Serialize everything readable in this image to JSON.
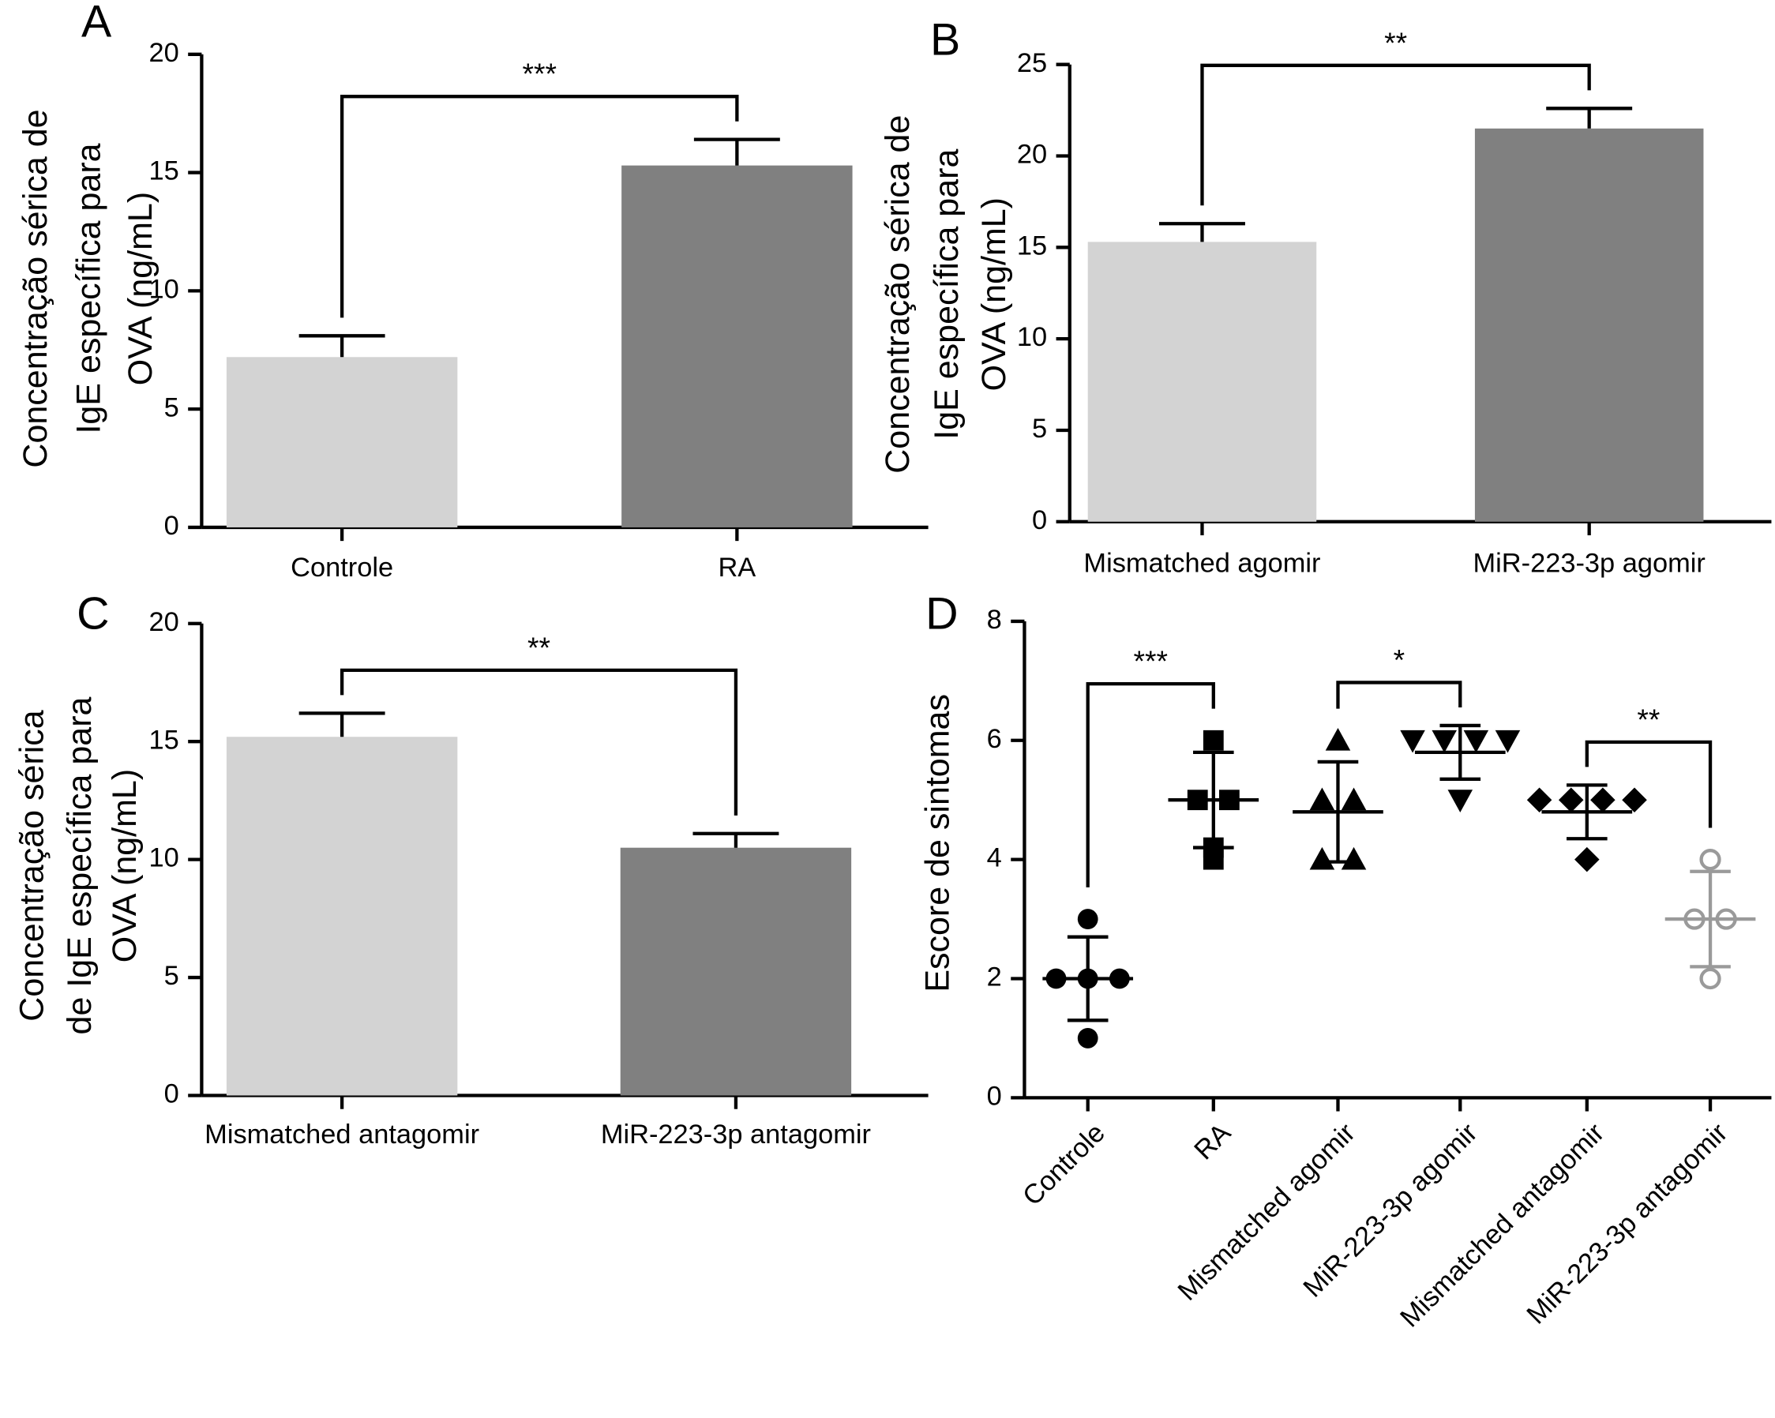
{
  "chart_data": [
    {
      "type": "bar",
      "panel_label": "A",
      "ylabel": [
        "Concentração sérica de",
        "IgE específica para",
        "OVA  (ng/mL)"
      ],
      "categories": [
        "Controle",
        "RA"
      ],
      "values": [
        7.2,
        15.3
      ],
      "errors": [
        0.9,
        1.1
      ],
      "colors": [
        "#d3d3d3",
        "#808080"
      ],
      "ylim": [
        0,
        20
      ],
      "yticks": [
        0,
        5,
        10,
        15,
        20
      ],
      "comparisons": [
        {
          "label": "***",
          "between": [
            "Controle",
            "RA"
          ]
        }
      ]
    },
    {
      "type": "bar",
      "panel_label": "B",
      "ylabel": [
        "Concentração sérica de",
        "IgE específica para",
        "OVA  (ng/mL)"
      ],
      "categories": [
        "Mismatched agomir",
        "MiR-223-3p agomir"
      ],
      "values": [
        15.3,
        21.5
      ],
      "errors": [
        1.0,
        1.1
      ],
      "colors": [
        "#d3d3d3",
        "#808080"
      ],
      "ylim": [
        0,
        25
      ],
      "yticks": [
        0,
        5,
        10,
        15,
        20,
        25
      ],
      "comparisons": [
        {
          "label": "**",
          "between": [
            "Mismatched agomir",
            "MiR-223-3p agomir"
          ]
        }
      ]
    },
    {
      "type": "bar",
      "panel_label": "C",
      "ylabel": [
        "Concentração sérica",
        "de IgE específica para",
        "OVA (ng/mL)"
      ],
      "categories": [
        "Mismatched antagomir",
        "MiR-223-3p antagomir"
      ],
      "values": [
        15.2,
        10.5
      ],
      "errors": [
        1.0,
        0.6
      ],
      "colors": [
        "#d3d3d3",
        "#808080"
      ],
      "ylim": [
        0,
        20
      ],
      "yticks": [
        0,
        5,
        10,
        15,
        20
      ],
      "comparisons": [
        {
          "label": "**",
          "between": [
            "Mismatched antagomir",
            "MiR-223-3p antagomir"
          ]
        }
      ]
    },
    {
      "type": "scatter",
      "panel_label": "D",
      "ylabel": [
        "Escore de sintomas"
      ],
      "categories": [
        "Controle",
        "RA",
        "Mismatched agomir",
        "MiR-223-3p agomir",
        "Mismatched antagomir",
        "MiR-223-3p antagomir"
      ],
      "points": [
        [
          1,
          2,
          2,
          2,
          3
        ],
        [
          4,
          4.2,
          5,
          5,
          6
        ],
        [
          4,
          4,
          5,
          5,
          6
        ],
        [
          5,
          6,
          6,
          6,
          6
        ],
        [
          4,
          5,
          5,
          5,
          5
        ],
        [
          2,
          3,
          3,
          4
        ]
      ],
      "means": [
        2,
        5,
        4.8,
        5.8,
        4.8,
        3
      ],
      "sds": [
        0.7,
        0.8,
        0.84,
        0.45,
        0.45,
        0.8
      ],
      "markers": [
        "circle",
        "square",
        "triangle-up",
        "triangle-down",
        "diamond",
        "circle-open"
      ],
      "colors": [
        "#000000",
        "#000000",
        "#000000",
        "#000000",
        "#000000",
        "#9a9a9a"
      ],
      "ylim": [
        0,
        8
      ],
      "yticks": [
        0,
        2,
        4,
        6,
        8
      ],
      "comparisons": [
        {
          "label": "***",
          "between": [
            "Controle",
            "RA"
          ]
        },
        {
          "label": "*",
          "between": [
            "Mismatched agomir",
            "MiR-223-3p agomir"
          ]
        },
        {
          "label": "**",
          "between": [
            "Mismatched antagomir",
            "MiR-223-3p antagomir"
          ]
        }
      ]
    }
  ]
}
